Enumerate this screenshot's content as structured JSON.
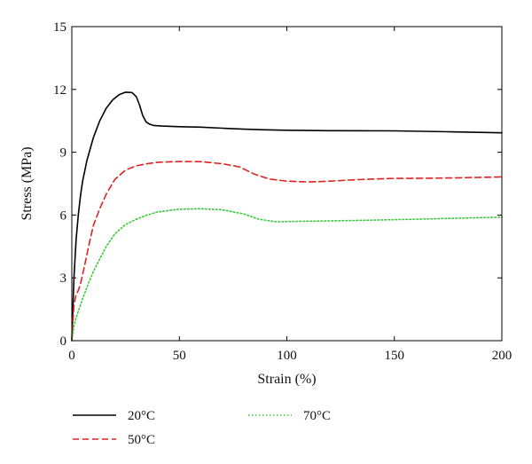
{
  "chart_data": {
    "type": "line",
    "xlabel": "Strain (%)",
    "ylabel": "Stress (MPa)",
    "xlim": [
      0,
      200
    ],
    "ylim": [
      0,
      15
    ],
    "x_ticks": [
      0,
      50,
      100,
      150,
      200
    ],
    "y_ticks": [
      0,
      3,
      6,
      9,
      12,
      15
    ],
    "grid": false,
    "legend_position": "bottom-left",
    "series": [
      {
        "name": "20°C",
        "color": "#000000",
        "dash": "solid",
        "points": [
          [
            0,
            0
          ],
          [
            0.5,
            1.5
          ],
          [
            1,
            3.0
          ],
          [
            2,
            4.8
          ],
          [
            3,
            6.0
          ],
          [
            4,
            6.9
          ],
          [
            5,
            7.6
          ],
          [
            7,
            8.6
          ],
          [
            10,
            9.7
          ],
          [
            13,
            10.5
          ],
          [
            16,
            11.1
          ],
          [
            19,
            11.5
          ],
          [
            22,
            11.75
          ],
          [
            25,
            11.87
          ],
          [
            28,
            11.85
          ],
          [
            30,
            11.65
          ],
          [
            31.5,
            11.25
          ],
          [
            33,
            10.75
          ],
          [
            34.5,
            10.45
          ],
          [
            36,
            10.35
          ],
          [
            38,
            10.28
          ],
          [
            42,
            10.25
          ],
          [
            50,
            10.22
          ],
          [
            60,
            10.2
          ],
          [
            70,
            10.15
          ],
          [
            80,
            10.1
          ],
          [
            90,
            10.07
          ],
          [
            100,
            10.05
          ],
          [
            120,
            10.03
          ],
          [
            150,
            10.02
          ],
          [
            175,
            9.98
          ],
          [
            200,
            9.93
          ]
        ]
      },
      {
        "name": "50°C",
        "color": "#dd2222",
        "dash": "dashed",
        "points": [
          [
            0,
            0
          ],
          [
            0.5,
            0.9
          ],
          [
            1,
            1.7
          ],
          [
            2,
            2.2
          ],
          [
            3,
            2.4
          ],
          [
            4,
            2.7
          ],
          [
            6,
            3.6
          ],
          [
            8,
            4.6
          ],
          [
            10,
            5.5
          ],
          [
            13,
            6.3
          ],
          [
            16,
            7.0
          ],
          [
            20,
            7.7
          ],
          [
            25,
            8.15
          ],
          [
            30,
            8.35
          ],
          [
            35,
            8.45
          ],
          [
            40,
            8.52
          ],
          [
            50,
            8.56
          ],
          [
            60,
            8.55
          ],
          [
            70,
            8.45
          ],
          [
            78,
            8.3
          ],
          [
            85,
            7.95
          ],
          [
            92,
            7.72
          ],
          [
            100,
            7.62
          ],
          [
            110,
            7.58
          ],
          [
            120,
            7.62
          ],
          [
            130,
            7.68
          ],
          [
            140,
            7.72
          ],
          [
            150,
            7.75
          ],
          [
            165,
            7.76
          ],
          [
            180,
            7.78
          ],
          [
            190,
            7.8
          ],
          [
            200,
            7.82
          ]
        ]
      },
      {
        "name": "70°C",
        "color": "#33cc33",
        "dash": "dotted",
        "points": [
          [
            0,
            0
          ],
          [
            1,
            0.7
          ],
          [
            2,
            1.1
          ],
          [
            3,
            1.4
          ],
          [
            5,
            2.0
          ],
          [
            8,
            2.8
          ],
          [
            10,
            3.3
          ],
          [
            13,
            3.9
          ],
          [
            16,
            4.5
          ],
          [
            20,
            5.1
          ],
          [
            25,
            5.55
          ],
          [
            30,
            5.8
          ],
          [
            35,
            6.0
          ],
          [
            40,
            6.15
          ],
          [
            50,
            6.28
          ],
          [
            60,
            6.3
          ],
          [
            70,
            6.25
          ],
          [
            80,
            6.05
          ],
          [
            87,
            5.8
          ],
          [
            95,
            5.68
          ],
          [
            105,
            5.7
          ],
          [
            120,
            5.72
          ],
          [
            140,
            5.76
          ],
          [
            160,
            5.8
          ],
          [
            180,
            5.85
          ],
          [
            200,
            5.9
          ]
        ]
      }
    ]
  }
}
